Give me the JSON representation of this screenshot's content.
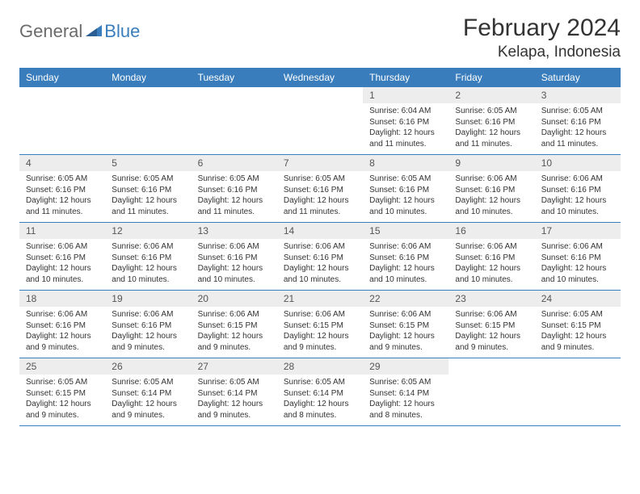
{
  "logo": {
    "part1": "General",
    "part2": "Blue"
  },
  "title": "February 2024",
  "location": "Kelapa, Indonesia",
  "colors": {
    "accent": "#3a7dbd",
    "header_text": "#ffffff",
    "daynum_bg": "#ededed",
    "daynum_text": "#555555",
    "body_text": "#333333",
    "logo_gray": "#6b6b6b"
  },
  "day_headers": [
    "Sunday",
    "Monday",
    "Tuesday",
    "Wednesday",
    "Thursday",
    "Friday",
    "Saturday"
  ],
  "weeks": [
    [
      {
        "empty": true
      },
      {
        "empty": true
      },
      {
        "empty": true
      },
      {
        "empty": true
      },
      {
        "n": "1",
        "sunrise": "Sunrise: 6:04 AM",
        "sunset": "Sunset: 6:16 PM",
        "daylight": "Daylight: 12 hours and 11 minutes."
      },
      {
        "n": "2",
        "sunrise": "Sunrise: 6:05 AM",
        "sunset": "Sunset: 6:16 PM",
        "daylight": "Daylight: 12 hours and 11 minutes."
      },
      {
        "n": "3",
        "sunrise": "Sunrise: 6:05 AM",
        "sunset": "Sunset: 6:16 PM",
        "daylight": "Daylight: 12 hours and 11 minutes."
      }
    ],
    [
      {
        "n": "4",
        "sunrise": "Sunrise: 6:05 AM",
        "sunset": "Sunset: 6:16 PM",
        "daylight": "Daylight: 12 hours and 11 minutes."
      },
      {
        "n": "5",
        "sunrise": "Sunrise: 6:05 AM",
        "sunset": "Sunset: 6:16 PM",
        "daylight": "Daylight: 12 hours and 11 minutes."
      },
      {
        "n": "6",
        "sunrise": "Sunrise: 6:05 AM",
        "sunset": "Sunset: 6:16 PM",
        "daylight": "Daylight: 12 hours and 11 minutes."
      },
      {
        "n": "7",
        "sunrise": "Sunrise: 6:05 AM",
        "sunset": "Sunset: 6:16 PM",
        "daylight": "Daylight: 12 hours and 11 minutes."
      },
      {
        "n": "8",
        "sunrise": "Sunrise: 6:05 AM",
        "sunset": "Sunset: 6:16 PM",
        "daylight": "Daylight: 12 hours and 10 minutes."
      },
      {
        "n": "9",
        "sunrise": "Sunrise: 6:06 AM",
        "sunset": "Sunset: 6:16 PM",
        "daylight": "Daylight: 12 hours and 10 minutes."
      },
      {
        "n": "10",
        "sunrise": "Sunrise: 6:06 AM",
        "sunset": "Sunset: 6:16 PM",
        "daylight": "Daylight: 12 hours and 10 minutes."
      }
    ],
    [
      {
        "n": "11",
        "sunrise": "Sunrise: 6:06 AM",
        "sunset": "Sunset: 6:16 PM",
        "daylight": "Daylight: 12 hours and 10 minutes."
      },
      {
        "n": "12",
        "sunrise": "Sunrise: 6:06 AM",
        "sunset": "Sunset: 6:16 PM",
        "daylight": "Daylight: 12 hours and 10 minutes."
      },
      {
        "n": "13",
        "sunrise": "Sunrise: 6:06 AM",
        "sunset": "Sunset: 6:16 PM",
        "daylight": "Daylight: 12 hours and 10 minutes."
      },
      {
        "n": "14",
        "sunrise": "Sunrise: 6:06 AM",
        "sunset": "Sunset: 6:16 PM",
        "daylight": "Daylight: 12 hours and 10 minutes."
      },
      {
        "n": "15",
        "sunrise": "Sunrise: 6:06 AM",
        "sunset": "Sunset: 6:16 PM",
        "daylight": "Daylight: 12 hours and 10 minutes."
      },
      {
        "n": "16",
        "sunrise": "Sunrise: 6:06 AM",
        "sunset": "Sunset: 6:16 PM",
        "daylight": "Daylight: 12 hours and 10 minutes."
      },
      {
        "n": "17",
        "sunrise": "Sunrise: 6:06 AM",
        "sunset": "Sunset: 6:16 PM",
        "daylight": "Daylight: 12 hours and 10 minutes."
      }
    ],
    [
      {
        "n": "18",
        "sunrise": "Sunrise: 6:06 AM",
        "sunset": "Sunset: 6:16 PM",
        "daylight": "Daylight: 12 hours and 9 minutes."
      },
      {
        "n": "19",
        "sunrise": "Sunrise: 6:06 AM",
        "sunset": "Sunset: 6:16 PM",
        "daylight": "Daylight: 12 hours and 9 minutes."
      },
      {
        "n": "20",
        "sunrise": "Sunrise: 6:06 AM",
        "sunset": "Sunset: 6:15 PM",
        "daylight": "Daylight: 12 hours and 9 minutes."
      },
      {
        "n": "21",
        "sunrise": "Sunrise: 6:06 AM",
        "sunset": "Sunset: 6:15 PM",
        "daylight": "Daylight: 12 hours and 9 minutes."
      },
      {
        "n": "22",
        "sunrise": "Sunrise: 6:06 AM",
        "sunset": "Sunset: 6:15 PM",
        "daylight": "Daylight: 12 hours and 9 minutes."
      },
      {
        "n": "23",
        "sunrise": "Sunrise: 6:06 AM",
        "sunset": "Sunset: 6:15 PM",
        "daylight": "Daylight: 12 hours and 9 minutes."
      },
      {
        "n": "24",
        "sunrise": "Sunrise: 6:05 AM",
        "sunset": "Sunset: 6:15 PM",
        "daylight": "Daylight: 12 hours and 9 minutes."
      }
    ],
    [
      {
        "n": "25",
        "sunrise": "Sunrise: 6:05 AM",
        "sunset": "Sunset: 6:15 PM",
        "daylight": "Daylight: 12 hours and 9 minutes."
      },
      {
        "n": "26",
        "sunrise": "Sunrise: 6:05 AM",
        "sunset": "Sunset: 6:14 PM",
        "daylight": "Daylight: 12 hours and 9 minutes."
      },
      {
        "n": "27",
        "sunrise": "Sunrise: 6:05 AM",
        "sunset": "Sunset: 6:14 PM",
        "daylight": "Daylight: 12 hours and 9 minutes."
      },
      {
        "n": "28",
        "sunrise": "Sunrise: 6:05 AM",
        "sunset": "Sunset: 6:14 PM",
        "daylight": "Daylight: 12 hours and 8 minutes."
      },
      {
        "n": "29",
        "sunrise": "Sunrise: 6:05 AM",
        "sunset": "Sunset: 6:14 PM",
        "daylight": "Daylight: 12 hours and 8 minutes."
      },
      {
        "empty": true
      },
      {
        "empty": true
      }
    ]
  ]
}
